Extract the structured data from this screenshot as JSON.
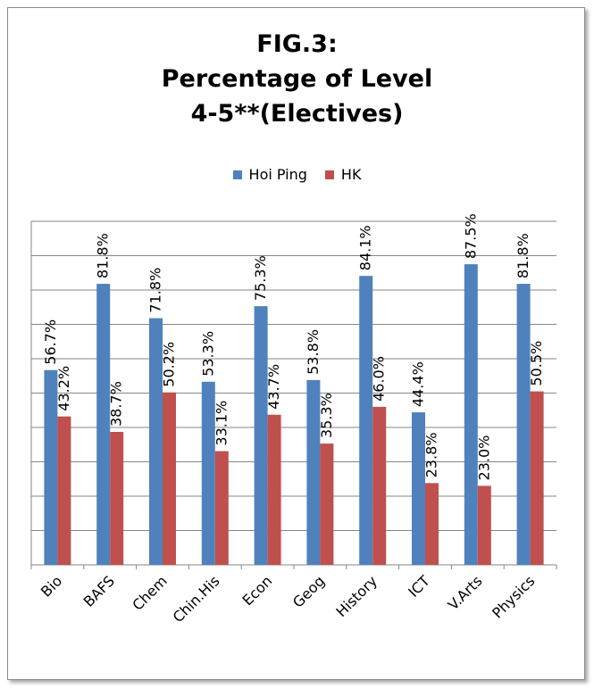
{
  "chart_data": {
    "type": "bar",
    "title_lines": [
      "FIG.3:",
      "Percentage of Level",
      "4-5**(Electives)"
    ],
    "categories": [
      "Bio",
      "BAFS",
      "Chem",
      "Chin.His",
      "Econ",
      "Geog",
      "History",
      "ICT",
      "V.Arts",
      "Physics"
    ],
    "series": [
      {
        "name": "Hoi Ping",
        "color": "#4f81bd",
        "values": [
          56.7,
          81.8,
          71.8,
          53.3,
          75.3,
          53.8,
          84.1,
          44.4,
          87.5,
          81.8
        ],
        "labels": [
          "56.7%",
          "81.8%",
          "71.8%",
          "53.3%",
          "75.3%",
          "53.8%",
          "84.1%",
          "44.4%",
          "87.5%",
          "81.8%"
        ]
      },
      {
        "name": "HK",
        "color": "#c0504d",
        "values": [
          43.2,
          38.7,
          50.2,
          33.1,
          43.7,
          35.3,
          46.0,
          23.8,
          23.0,
          50.5
        ],
        "labels": [
          "43.2%",
          "38.7%",
          "50.2%",
          "33.1%",
          "43.7%",
          "35.3%",
          "46.0%",
          "23.8%",
          "23.0%",
          "50.5%"
        ]
      }
    ],
    "ylim": [
      0,
      100
    ],
    "grid": true,
    "legend_position": "top"
  }
}
